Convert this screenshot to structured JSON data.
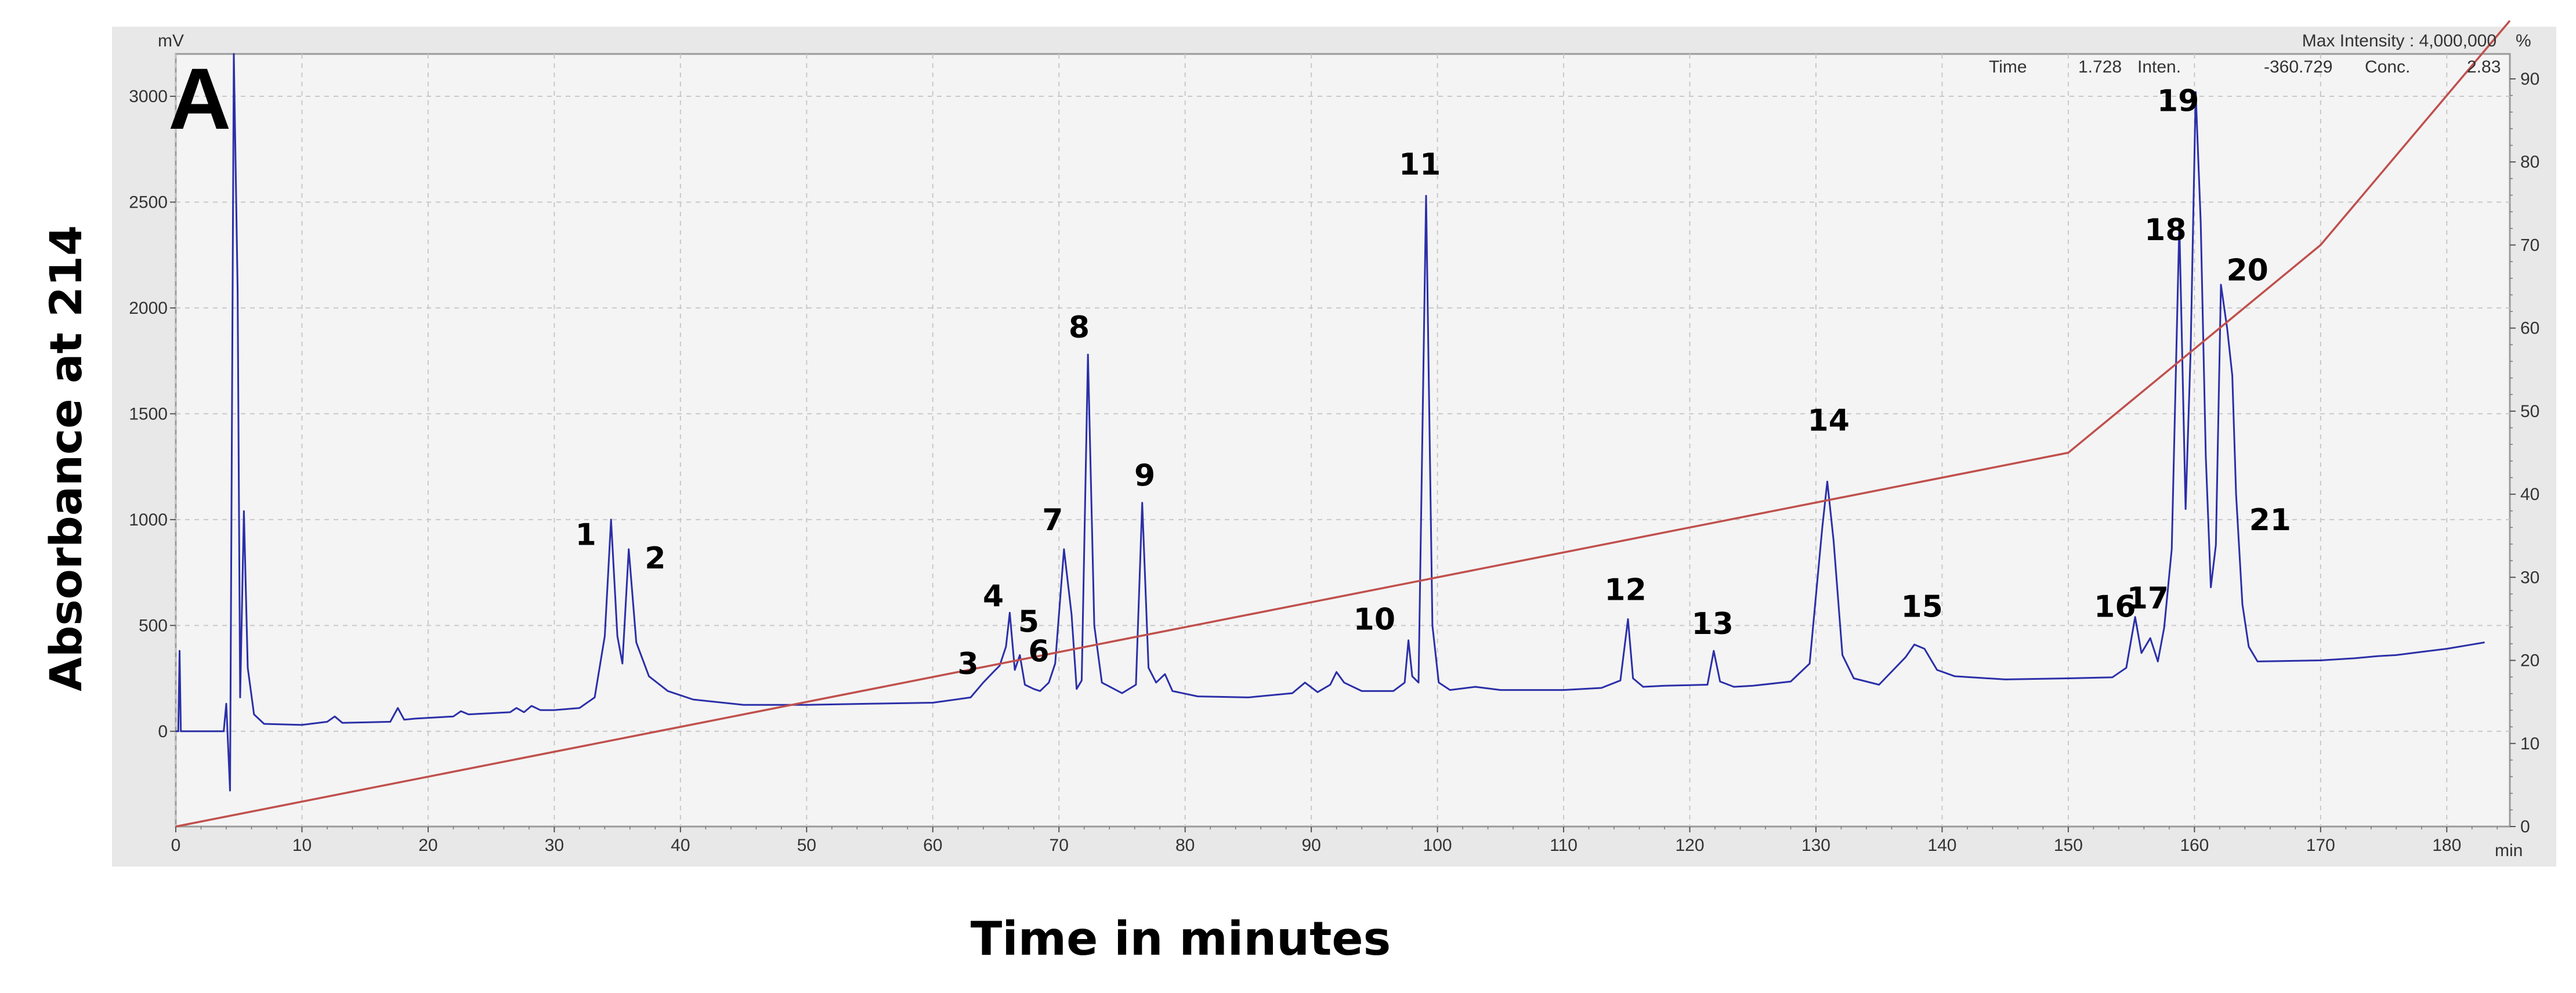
{
  "panel_label": "A",
  "instrument": {
    "max_intensity": "Max Intensity : 4,000,000",
    "left_unit": "mV",
    "right_unit": "%",
    "x_unit": "min",
    "cursor": {
      "time_label": "Time",
      "time_value": "1.728",
      "inten_label": "Inten.",
      "inten_value": "-360.729",
      "conc_label": "Conc.",
      "conc_value": "2.83"
    }
  },
  "axis_titles": {
    "y": "Absorbance at 214",
    "x": "Time in minutes"
  },
  "colors": {
    "absorbance_trace": "#2b2fa8",
    "gradient_line": "#c0504d",
    "plot_background": "#f4f4f4",
    "grid": "#c8c8c8",
    "frame": "#9a9a9a"
  },
  "chart_data": {
    "type": "line",
    "grid": true,
    "x_ticks": [
      0,
      10,
      20,
      30,
      40,
      50,
      60,
      70,
      80,
      90,
      100,
      110,
      120,
      130,
      140,
      150,
      160,
      170,
      180
    ],
    "y_left_ticks": [
      0,
      500,
      1000,
      1500,
      2000,
      2500,
      3000
    ],
    "y_right_ticks": [
      0,
      10,
      20,
      30,
      40,
      50,
      60,
      70,
      80,
      90
    ],
    "xlim": [
      0,
      185
    ],
    "ylim_left": [
      -450,
      3200
    ],
    "ylim_right": [
      0,
      93
    ],
    "series": [
      {
        "axis": "left",
        "points": [
          [
            0,
            0
          ],
          [
            0.2,
            0
          ],
          [
            0.3,
            380
          ],
          [
            0.4,
            0
          ],
          [
            3.8,
            0
          ],
          [
            4.0,
            130
          ],
          [
            4.3,
            -280
          ],
          [
            4.6,
            3200
          ],
          [
            4.9,
            2080
          ],
          [
            5.1,
            160
          ],
          [
            5.4,
            1040
          ],
          [
            5.7,
            300
          ],
          [
            6.2,
            80
          ],
          [
            7,
            35
          ],
          [
            10,
            30
          ],
          [
            12,
            45
          ],
          [
            12.6,
            70
          ],
          [
            13.2,
            40
          ],
          [
            17,
            45
          ],
          [
            17.6,
            110
          ],
          [
            18.1,
            55
          ],
          [
            19,
            60
          ],
          [
            22,
            70
          ],
          [
            22.6,
            95
          ],
          [
            23.2,
            80
          ],
          [
            26.5,
            90
          ],
          [
            27,
            110
          ],
          [
            27.6,
            90
          ],
          [
            28.2,
            120
          ],
          [
            28.9,
            100
          ],
          [
            30,
            100
          ],
          [
            32,
            110
          ],
          [
            33.2,
            160
          ],
          [
            34,
            450
          ],
          [
            34.5,
            1000
          ],
          [
            35.0,
            450
          ],
          [
            35.4,
            320
          ],
          [
            35.9,
            860
          ],
          [
            36.5,
            420
          ],
          [
            37.5,
            260
          ],
          [
            39,
            190
          ],
          [
            41,
            150
          ],
          [
            45,
            125
          ],
          [
            50,
            125
          ],
          [
            55,
            130
          ],
          [
            60,
            135
          ],
          [
            63,
            160
          ],
          [
            64,
            230
          ],
          [
            64.8,
            280
          ],
          [
            65.3,
            310
          ],
          [
            65.8,
            400
          ],
          [
            66.1,
            560
          ],
          [
            66.5,
            290
          ],
          [
            66.9,
            360
          ],
          [
            67.3,
            220
          ],
          [
            68,
            200
          ],
          [
            68.5,
            190
          ],
          [
            69.2,
            230
          ],
          [
            69.7,
            320
          ],
          [
            70.4,
            860
          ],
          [
            71,
            550
          ],
          [
            71.4,
            200
          ],
          [
            71.8,
            240
          ],
          [
            72.3,
            1780
          ],
          [
            72.8,
            500
          ],
          [
            73.4,
            230
          ],
          [
            75,
            180
          ],
          [
            76.1,
            220
          ],
          [
            76.6,
            1080
          ],
          [
            77.1,
            300
          ],
          [
            77.7,
            230
          ],
          [
            78.4,
            270
          ],
          [
            79,
            190
          ],
          [
            81,
            165
          ],
          [
            85,
            160
          ],
          [
            88.5,
            180
          ],
          [
            89.5,
            230
          ],
          [
            90.5,
            185
          ],
          [
            91.5,
            220
          ],
          [
            92,
            280
          ],
          [
            92.6,
            230
          ],
          [
            94,
            190
          ],
          [
            96.5,
            190
          ],
          [
            97.4,
            230
          ],
          [
            97.7,
            430
          ],
          [
            98.0,
            260
          ],
          [
            98.5,
            230
          ],
          [
            99.1,
            2530
          ],
          [
            99.6,
            500
          ],
          [
            100.1,
            230
          ],
          [
            101,
            195
          ],
          [
            103,
            210
          ],
          [
            105,
            195
          ],
          [
            110,
            195
          ],
          [
            113,
            205
          ],
          [
            114.5,
            240
          ],
          [
            115.1,
            530
          ],
          [
            115.5,
            250
          ],
          [
            116.3,
            210
          ],
          [
            118,
            215
          ],
          [
            121.4,
            220
          ],
          [
            121.9,
            380
          ],
          [
            122.4,
            235
          ],
          [
            123.5,
            210
          ],
          [
            125,
            215
          ],
          [
            128,
            235
          ],
          [
            129.5,
            320
          ],
          [
            130.5,
            960
          ],
          [
            130.9,
            1180
          ],
          [
            131.4,
            900
          ],
          [
            132.1,
            360
          ],
          [
            133,
            250
          ],
          [
            135,
            220
          ],
          [
            137.1,
            350
          ],
          [
            137.8,
            410
          ],
          [
            138.6,
            390
          ],
          [
            139.6,
            290
          ],
          [
            141,
            260
          ],
          [
            145,
            245
          ],
          [
            150,
            250
          ],
          [
            153.5,
            255
          ],
          [
            154.6,
            300
          ],
          [
            155.3,
            540
          ],
          [
            155.8,
            370
          ],
          [
            156.5,
            440
          ],
          [
            157.1,
            330
          ],
          [
            157.6,
            490
          ],
          [
            158.2,
            860
          ],
          [
            158.8,
            2400
          ],
          [
            159.3,
            1050
          ],
          [
            159.7,
            1800
          ],
          [
            160.1,
            3020
          ],
          [
            160.5,
            2400
          ],
          [
            160.9,
            1300
          ],
          [
            161.3,
            680
          ],
          [
            161.7,
            880
          ],
          [
            162.1,
            2110
          ],
          [
            162.6,
            1900
          ],
          [
            163.0,
            1680
          ],
          [
            163.3,
            1120
          ],
          [
            163.8,
            600
          ],
          [
            164.3,
            400
          ],
          [
            165,
            330
          ],
          [
            170,
            335
          ],
          [
            172.7,
            345
          ],
          [
            174.5,
            355
          ],
          [
            176,
            360
          ],
          [
            178,
            375
          ],
          [
            180,
            390
          ],
          [
            182,
            410
          ],
          [
            183,
            420
          ]
        ]
      },
      {
        "axis": "right",
        "points": [
          [
            0,
            0
          ],
          [
            150,
            45
          ],
          [
            170,
            70
          ],
          [
            185,
            97
          ]
        ]
      }
    ],
    "annotations": [
      {
        "label": "1",
        "x": 32.5,
        "y": 880
      },
      {
        "label": "2",
        "x": 38.0,
        "y": 770
      },
      {
        "label": "3",
        "x": 62.8,
        "y": 270
      },
      {
        "label": "4",
        "x": 64.8,
        "y": 590
      },
      {
        "label": "5",
        "x": 67.6,
        "y": 470
      },
      {
        "label": "6",
        "x": 68.4,
        "y": 330
      },
      {
        "label": "7",
        "x": 69.5,
        "y": 950
      },
      {
        "label": "8",
        "x": 71.6,
        "y": 1860
      },
      {
        "label": "9",
        "x": 76.8,
        "y": 1160
      },
      {
        "label": "10",
        "x": 95.0,
        "y": 480
      },
      {
        "label": "11",
        "x": 98.6,
        "y": 2630
      },
      {
        "label": "12",
        "x": 114.9,
        "y": 620
      },
      {
        "label": "13",
        "x": 121.8,
        "y": 460
      },
      {
        "label": "14",
        "x": 131.0,
        "y": 1420
      },
      {
        "label": "15",
        "x": 138.4,
        "y": 540
      },
      {
        "label": "16",
        "x": 153.7,
        "y": 540
      },
      {
        "label": "17",
        "x": 156.3,
        "y": 580
      },
      {
        "label": "18",
        "x": 157.7,
        "y": 2320
      },
      {
        "label": "19",
        "x": 158.7,
        "y": 2930
      },
      {
        "label": "20",
        "x": 164.2,
        "y": 2130
      },
      {
        "label": "21",
        "x": 166.0,
        "y": 950
      }
    ]
  }
}
